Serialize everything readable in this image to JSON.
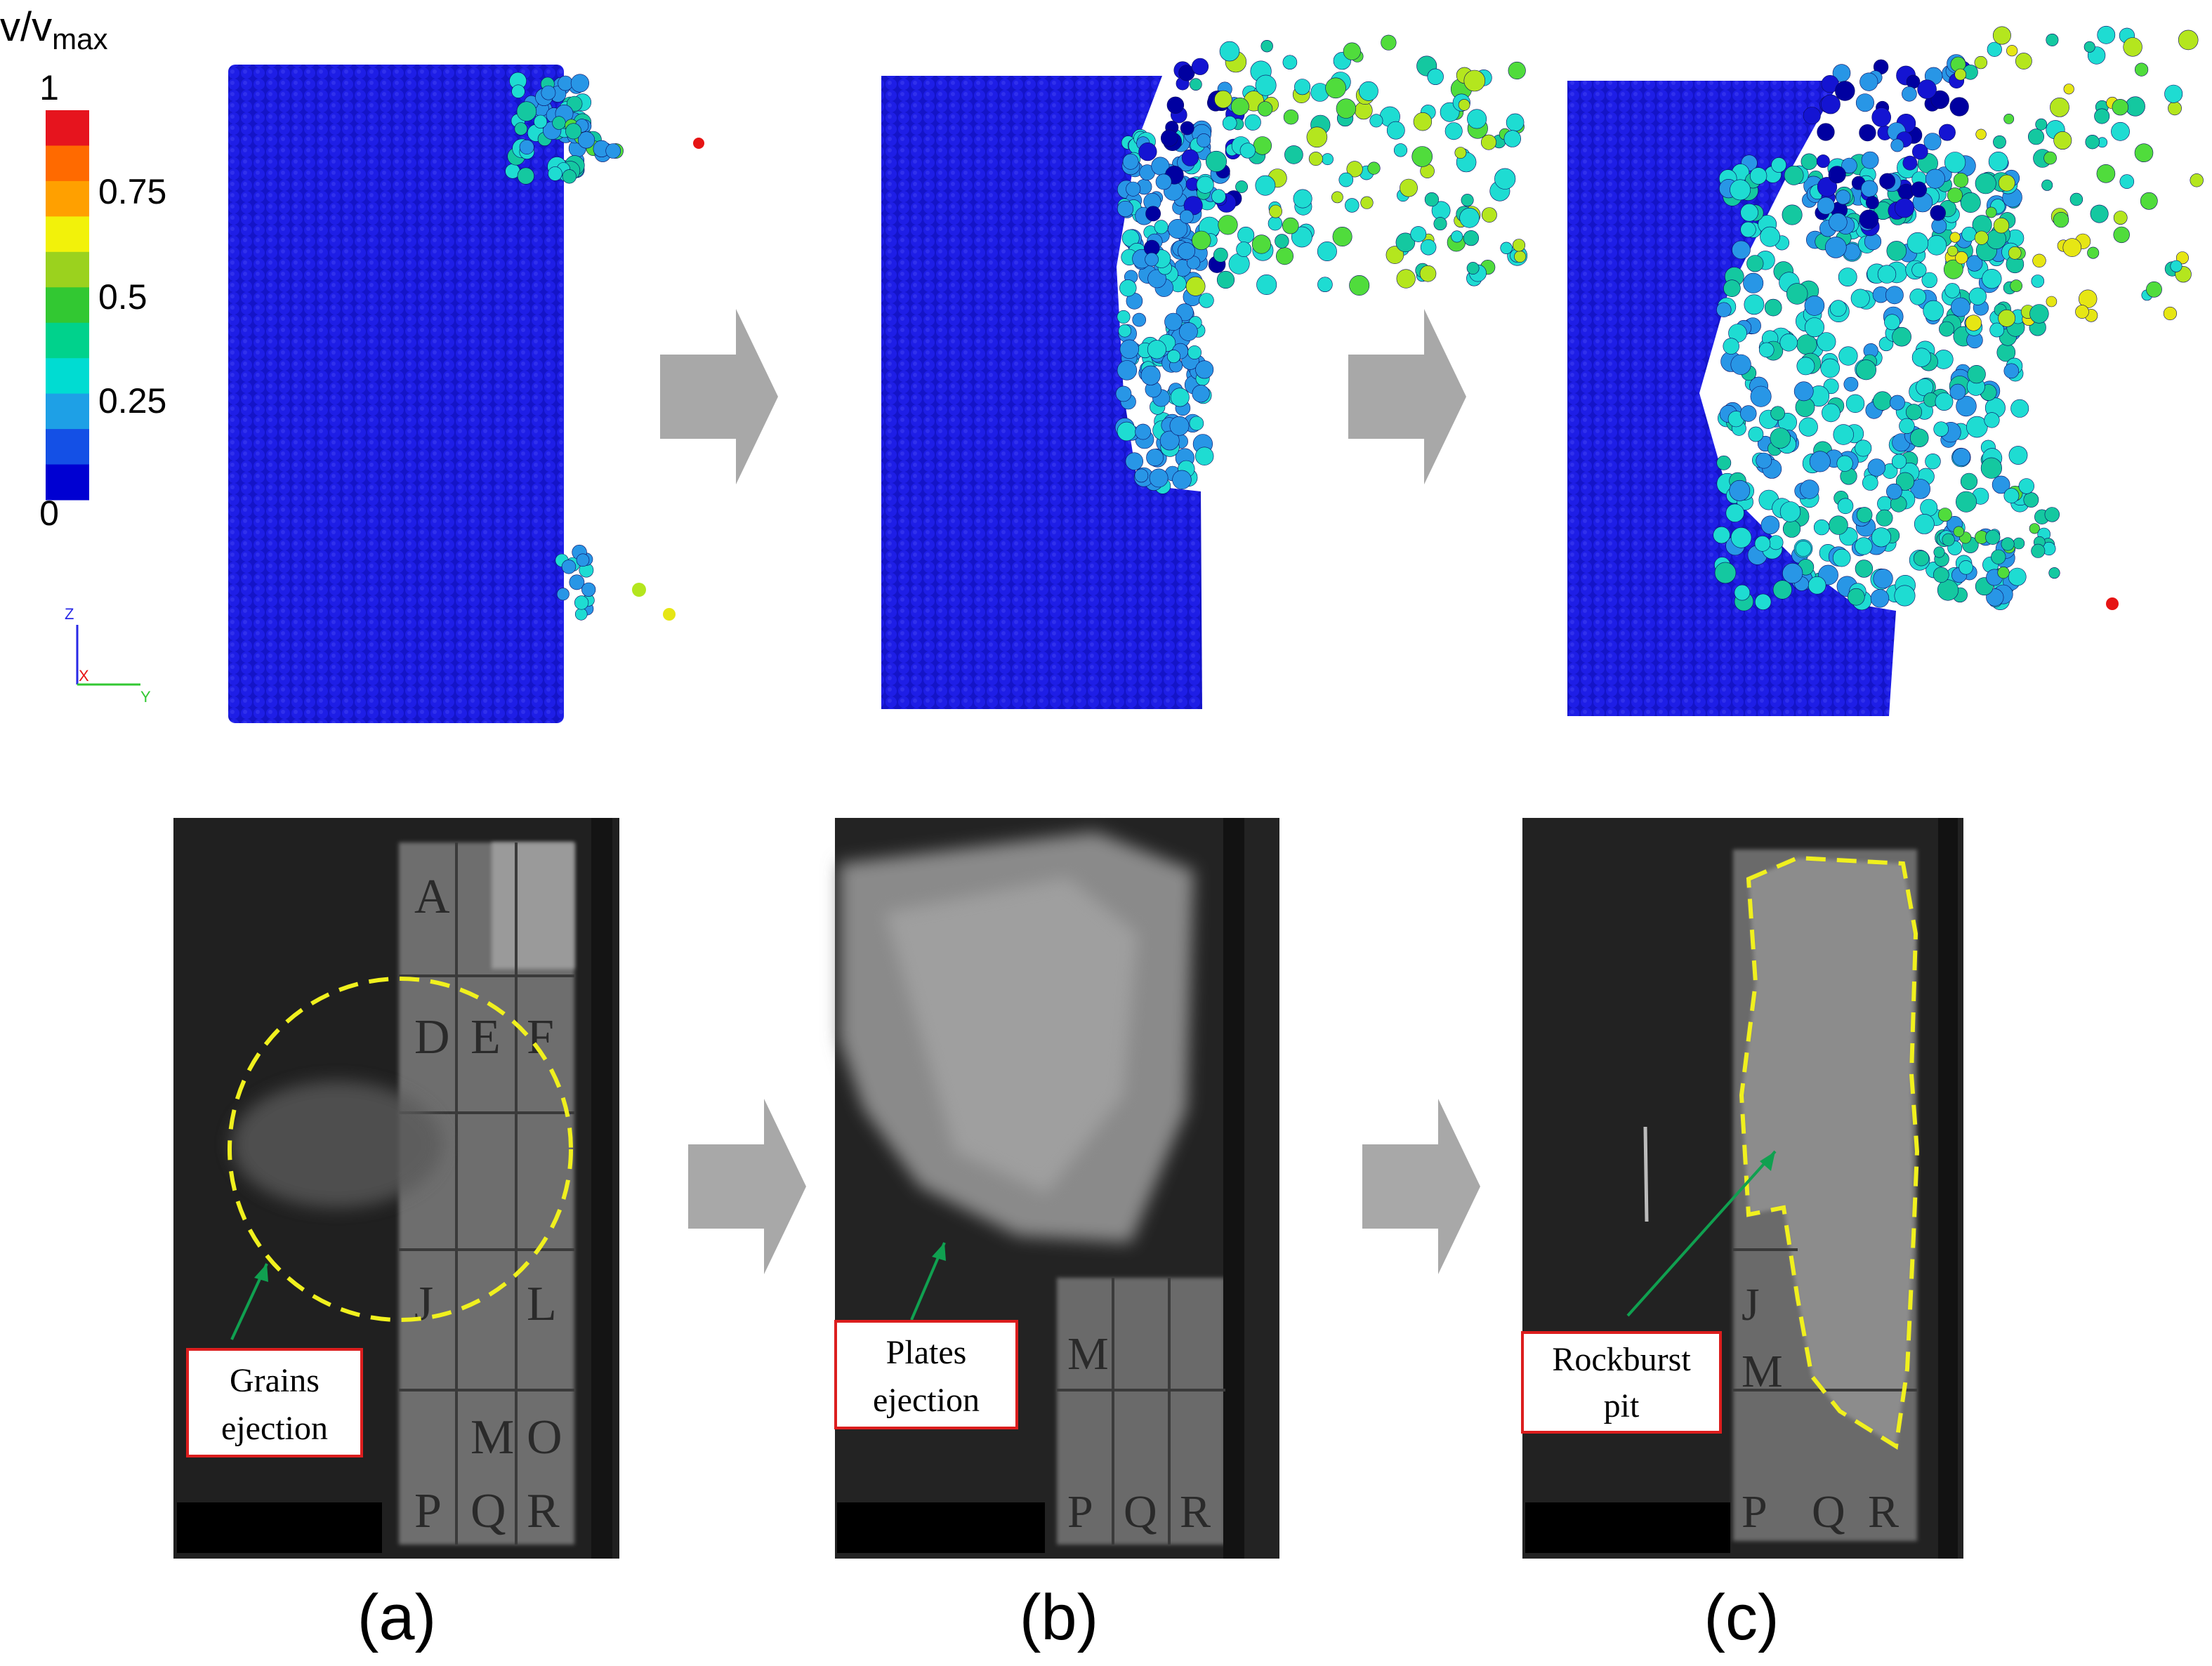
{
  "colorbar": {
    "title_main": "v/v",
    "title_sub": "max",
    "labels": [
      "1",
      "0.75",
      "0.5",
      "0.25",
      "0"
    ],
    "colors": [
      "#e6141e",
      "#ff6a00",
      "#ffa000",
      "#f2f20a",
      "#9bd21e",
      "#32c832",
      "#00d28c",
      "#00dcd2",
      "#1ea0e6",
      "#1450e6",
      "#0000d2"
    ]
  },
  "axes": {
    "z": "Z",
    "x": "X",
    "y": "Y"
  },
  "particle_colors": {
    "blue": "#1414d2",
    "dark_blue": "#0000a0",
    "light_blue": "#2896e6",
    "cyan": "#1edcd2",
    "teal": "#14c8a0",
    "green": "#50dc3c",
    "yellow_green": "#b4e61e",
    "yellow": "#e6e614",
    "red": "#e61414"
  },
  "annotations": {
    "highlight_color": "#f0f01e",
    "arrow_color": "#10a050",
    "box_color": "#dc1e1e",
    "arrow_fill": "#a8a8a8"
  },
  "panels": [
    {
      "label": "(a)",
      "annotation_line1": "Grains",
      "annotation_line2": "ejection"
    },
    {
      "label": "(b)",
      "annotation_line1": "Plates",
      "annotation_line2": "ejection"
    },
    {
      "label": "(c)",
      "annotation_line1": "Rockburst",
      "annotation_line2": "pit"
    }
  ],
  "specimen_letters": {
    "panel_a": [
      "A",
      "D",
      "E",
      "F",
      "J",
      "L",
      "M",
      "O",
      "P",
      "Q",
      "R"
    ],
    "panel_b": [
      "M",
      "P",
      "Q",
      "R"
    ],
    "panel_c": [
      "J",
      "M",
      "P",
      "Q",
      "R"
    ]
  }
}
